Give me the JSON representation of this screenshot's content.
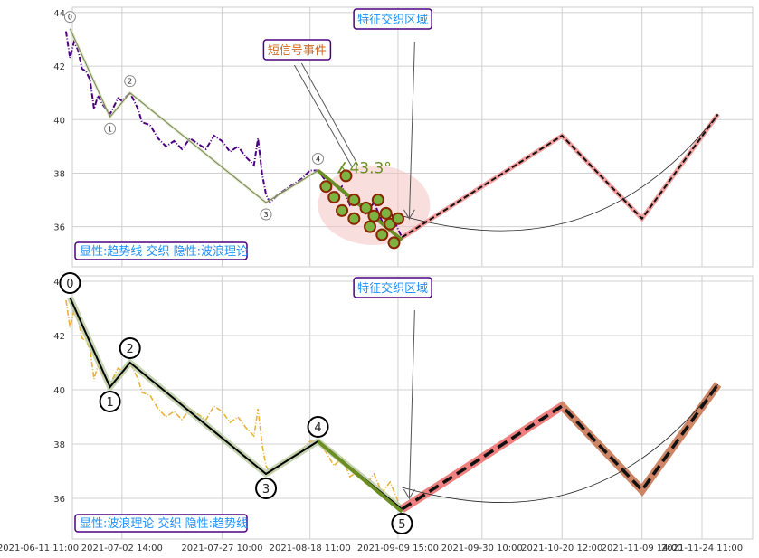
{
  "chart_data": [
    {
      "type": "line",
      "panel": "top",
      "ylim": [
        34.5,
        44.2
      ],
      "yticks": [
        36,
        38,
        40,
        42,
        44
      ],
      "grid": true,
      "legend_text": "显性:趋势线 交织 隐性:波浪理论",
      "annotations": {
        "feature_zone": "特征交织区域",
        "short_signal": "短信号事件",
        "angle": "∡43.3°"
      },
      "wave_labels": [
        {
          "label": "0",
          "x": "2021-06-19",
          "y": 43.4
        },
        {
          "label": "1",
          "x": "2021-06-29",
          "y": 40.1
        },
        {
          "label": "2",
          "x": "2021-07-04",
          "y": 41.0
        },
        {
          "label": "3",
          "x": "2021-08-07",
          "y": 36.9
        },
        {
          "label": "4",
          "x": "2021-08-20",
          "y": 38.1
        }
      ],
      "series": [
        {
          "values": [
            [
              "2021-06-18",
              43.3
            ],
            [
              "2021-06-19",
              42.3
            ],
            [
              "2021-06-20",
              42.9
            ],
            [
              "2021-06-21",
              42.6
            ],
            [
              "2021-06-22",
              41.9
            ],
            [
              "2021-06-23",
              41.8
            ],
            [
              "2021-06-24",
              41.5
            ],
            [
              "2021-06-25",
              40.4
            ],
            [
              "2021-06-26",
              40.9
            ],
            [
              "2021-06-27",
              40.6
            ],
            [
              "2021-06-29",
              40.2
            ],
            [
              "2021-06-30",
              40.5
            ],
            [
              "2021-07-01",
              40.8
            ],
            [
              "2021-07-02",
              40.7
            ],
            [
              "2021-07-04",
              41.0
            ],
            [
              "2021-07-06",
              40.4
            ],
            [
              "2021-07-07",
              39.9
            ],
            [
              "2021-07-09",
              39.8
            ],
            [
              "2021-07-11",
              39.3
            ],
            [
              "2021-07-13",
              39.0
            ],
            [
              "2021-07-15",
              39.2
            ],
            [
              "2021-07-17",
              38.9
            ],
            [
              "2021-07-19",
              39.3
            ],
            [
              "2021-07-21",
              39.1
            ],
            [
              "2021-07-23",
              38.9
            ],
            [
              "2021-07-25",
              39.4
            ],
            [
              "2021-07-27",
              39.2
            ],
            [
              "2021-07-29",
              38.8
            ],
            [
              "2021-07-31",
              39.0
            ],
            [
              "2021-08-02",
              38.6
            ],
            [
              "2021-08-04",
              38.3
            ],
            [
              "2021-08-05",
              39.3
            ],
            [
              "2021-08-06",
              38.0
            ],
            [
              "2021-08-07",
              37.2
            ],
            [
              "2021-08-08",
              36.9
            ],
            [
              "2021-08-10",
              37.2
            ],
            [
              "2021-08-12",
              37.4
            ],
            [
              "2021-08-14",
              37.6
            ],
            [
              "2021-08-16",
              37.8
            ],
            [
              "2021-08-18",
              38.1
            ],
            [
              "2021-08-20",
              38.1
            ],
            [
              "2021-08-22",
              37.7
            ],
            [
              "2021-08-24",
              37.2
            ],
            [
              "2021-08-26",
              37.5
            ],
            [
              "2021-08-28",
              36.8
            ],
            [
              "2021-08-30",
              37.0
            ],
            [
              "2021-09-01",
              36.5
            ],
            [
              "2021-09-03",
              36.9
            ],
            [
              "2021-09-05",
              36.2
            ],
            [
              "2021-09-07",
              36.6
            ],
            [
              "2021-09-09",
              35.9
            ],
            [
              "2021-09-10",
              35.6
            ]
          ]
        },
        {
          "name": "trend",
          "values": [
            [
              "2021-09-10",
              35.6
            ],
            [
              "2021-10-20",
              39.4
            ],
            [
              "2021-11-09",
              36.3
            ],
            [
              "2021-11-28",
              40.2
            ]
          ]
        }
      ]
    },
    {
      "type": "line",
      "panel": "bottom",
      "ylim": [
        34.5,
        44.2
      ],
      "yticks": [
        36,
        38,
        40,
        42,
        44
      ],
      "grid": true,
      "legend_text": "显性:波浪理论 交织 隐性:趋势线",
      "annotations": {
        "feature_zone": "特征交织区域"
      },
      "wave_labels": [
        {
          "label": "0",
          "x": "2021-06-19",
          "y": 43.4
        },
        {
          "label": "1",
          "x": "2021-06-29",
          "y": 40.1
        },
        {
          "label": "2",
          "x": "2021-07-04",
          "y": 41.0
        },
        {
          "label": "3",
          "x": "2021-08-07",
          "y": 36.9
        },
        {
          "label": "4",
          "x": "2021-08-20",
          "y": 38.1
        },
        {
          "label": "5",
          "x": "2021-09-10",
          "y": 35.6
        }
      ],
      "series": [
        {
          "values": [
            [
              "2021-06-18",
              43.3
            ],
            [
              "2021-06-19",
              42.3
            ],
            [
              "2021-06-20",
              42.9
            ],
            [
              "2021-06-21",
              42.6
            ],
            [
              "2021-06-22",
              41.9
            ],
            [
              "2021-06-23",
              41.8
            ],
            [
              "2021-06-24",
              41.5
            ],
            [
              "2021-06-25",
              40.4
            ],
            [
              "2021-06-26",
              40.9
            ],
            [
              "2021-06-27",
              40.6
            ],
            [
              "2021-06-29",
              40.2
            ],
            [
              "2021-06-30",
              40.5
            ],
            [
              "2021-07-01",
              40.8
            ],
            [
              "2021-07-02",
              40.7
            ],
            [
              "2021-07-04",
              41.0
            ],
            [
              "2021-07-06",
              40.4
            ],
            [
              "2021-07-07",
              39.9
            ],
            [
              "2021-07-09",
              39.8
            ],
            [
              "2021-07-11",
              39.3
            ],
            [
              "2021-07-13",
              39.0
            ],
            [
              "2021-07-15",
              39.2
            ],
            [
              "2021-07-17",
              38.9
            ],
            [
              "2021-07-19",
              39.3
            ],
            [
              "2021-07-21",
              39.1
            ],
            [
              "2021-07-23",
              38.9
            ],
            [
              "2021-07-25",
              39.4
            ],
            [
              "2021-07-27",
              39.2
            ],
            [
              "2021-07-29",
              38.8
            ],
            [
              "2021-07-31",
              39.0
            ],
            [
              "2021-08-02",
              38.6
            ],
            [
              "2021-08-04",
              38.3
            ],
            [
              "2021-08-05",
              39.3
            ],
            [
              "2021-08-06",
              38.0
            ],
            [
              "2021-08-07",
              37.2
            ],
            [
              "2021-08-08",
              36.9
            ],
            [
              "2021-08-10",
              37.2
            ],
            [
              "2021-08-12",
              37.4
            ],
            [
              "2021-08-14",
              37.6
            ],
            [
              "2021-08-16",
              37.8
            ],
            [
              "2021-08-18",
              38.1
            ],
            [
              "2021-08-20",
              38.1
            ],
            [
              "2021-08-22",
              37.7
            ],
            [
              "2021-08-24",
              37.2
            ],
            [
              "2021-08-26",
              37.5
            ],
            [
              "2021-08-28",
              36.8
            ],
            [
              "2021-08-30",
              37.0
            ],
            [
              "2021-09-01",
              36.5
            ],
            [
              "2021-09-03",
              36.9
            ],
            [
              "2021-09-05",
              36.2
            ],
            [
              "2021-09-07",
              36.6
            ],
            [
              "2021-09-09",
              35.9
            ],
            [
              "2021-09-10",
              35.6
            ]
          ]
        },
        {
          "name": "trend",
          "values": [
            [
              "2021-09-10",
              35.6
            ],
            [
              "2021-10-20",
              39.4
            ],
            [
              "2021-11-09",
              36.3
            ],
            [
              "2021-11-28",
              40.2
            ]
          ]
        }
      ]
    }
  ],
  "x_axis": {
    "ticks": [
      {
        "label": "2021-06-11 11:00",
        "date": "2021-06-11"
      },
      {
        "label": "2021-07-02 14:00",
        "date": "2021-07-02"
      },
      {
        "label": "2021-07-27 10:00",
        "date": "2021-07-27"
      },
      {
        "label": "2021-08-18 11:00",
        "date": "2021-08-18"
      },
      {
        "label": "2021-09-09 15:00",
        "date": "2021-09-09"
      },
      {
        "label": "2021-09-30 10:00",
        "date": "2021-09-30"
      },
      {
        "label": "2021-10-20 12:00",
        "date": "2021-10-20"
      },
      {
        "label": "2021-11-09 14:00",
        "date": "2021-11-09"
      },
      {
        "label": "2021-11-24 11:00",
        "date": "2021-11-24"
      }
    ]
  },
  "colors": {
    "top_price": "#4b0082",
    "bottom_price": "#e8b23a",
    "wave_line": "#000000",
    "trend_green": "#6b8e23",
    "trend_red": "#f08080",
    "trend_brown": "#c87855",
    "label_border": "#4b0082",
    "label_text": "#1e90ff",
    "signal_text": "#d2691e",
    "zone_fill": "#f4c2c2"
  }
}
